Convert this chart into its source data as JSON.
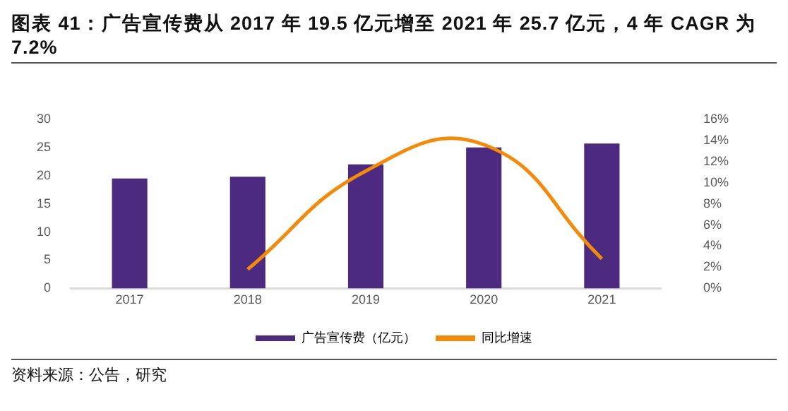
{
  "chart_data": {
    "type": "bar",
    "title": "图表 41：广告宣传费从 2017 年 19.5 亿元增至 2021 年 25.7 亿元，4 年 CAGR 为 7.2%",
    "categories": [
      "2017",
      "2018",
      "2019",
      "2020",
      "2021"
    ],
    "series": [
      {
        "name": "广告宣传费（亿元）",
        "color": "#4b2a7f",
        "values": [
          19.5,
          19.8,
          22.0,
          25.0,
          25.7
        ]
      },
      {
        "name": "同比增速",
        "type": "line",
        "axis": "y2",
        "color": "#f28a0c",
        "values": [
          null,
          1.8,
          11.1,
          13.6,
          2.8
        ]
      }
    ],
    "ylim": [
      0,
      30
    ],
    "yticks": [
      0,
      5,
      10,
      15,
      20,
      25,
      30
    ],
    "y2lim": [
      0,
      16
    ],
    "y2ticks": [
      {
        "value": 0,
        "label": "0%"
      },
      {
        "value": 2,
        "label": "2%"
      },
      {
        "value": 4,
        "label": "4%"
      },
      {
        "value": 6,
        "label": "6%"
      },
      {
        "value": 8,
        "label": "8%"
      },
      {
        "value": 10,
        "label": "10%"
      },
      {
        "value": 12,
        "label": "12%"
      },
      {
        "value": 14,
        "label": "14%"
      },
      {
        "value": 16,
        "label": "16%"
      }
    ],
    "legend": "bottom",
    "grid": false,
    "marker": "none",
    "annotations": [
      "资料来源：公告，研究"
    ]
  }
}
